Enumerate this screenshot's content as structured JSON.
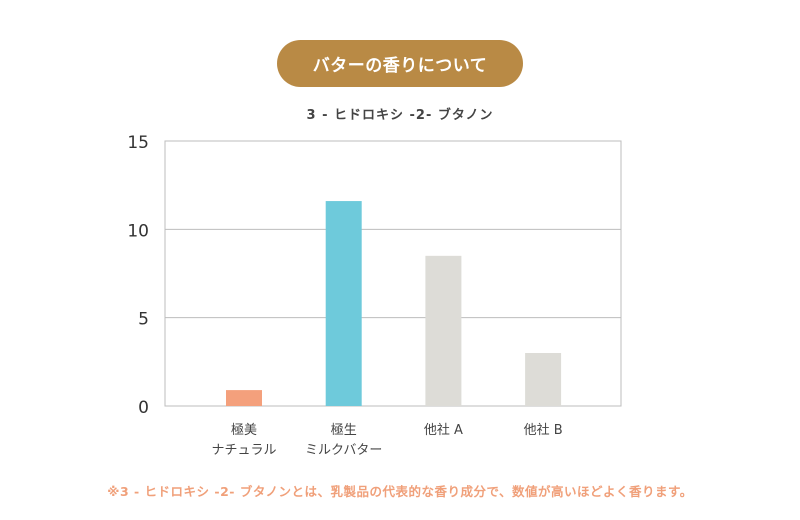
{
  "header": {
    "title": "バターの香りについて"
  },
  "footnote": "※3 - ヒドロキシ -2- ブタノンとは、乳製品の代表的な香り成分で、数値が高いほどよく香ります。",
  "chart_data": {
    "type": "bar",
    "title": "3 - ヒドロキシ -2- ブタノン",
    "xlabel": "",
    "ylabel": "",
    "ylim": [
      0,
      15
    ],
    "yticks": [
      0,
      5,
      10,
      15
    ],
    "grid": true,
    "legend": "none",
    "categories": [
      [
        "極美",
        "ナチュラル"
      ],
      [
        "極生",
        "ミルクバター"
      ],
      [
        "他社 A"
      ],
      [
        "他社 B"
      ]
    ],
    "values": [
      0.9,
      11.6,
      8.5,
      3.0
    ],
    "colors": [
      "#f4a07c",
      "#6ecadb",
      "#dddcd7",
      "#dddcd7"
    ]
  }
}
